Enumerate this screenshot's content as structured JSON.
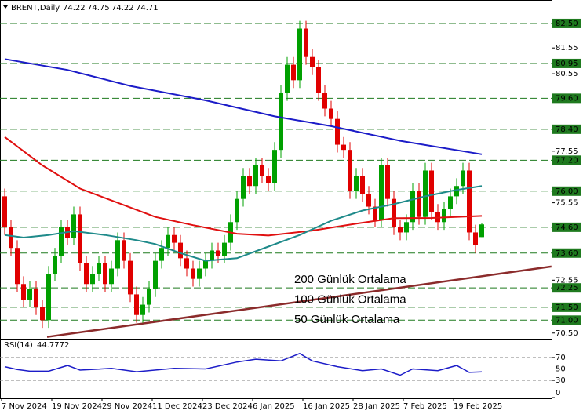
{
  "chart_data": [
    {
      "type": "candlestick",
      "title": "BRENT,Daily",
      "categories": [
        "7 Nov 2024",
        null,
        null,
        null,
        null,
        null,
        null,
        null,
        "19 Nov 2024",
        null,
        null,
        null,
        null,
        null,
        null,
        null,
        "29 Nov 2024",
        null,
        null,
        null,
        null,
        null,
        null,
        null,
        "11 Dec 2024",
        null,
        null,
        null,
        null,
        null,
        null,
        null,
        "23 Dec 2024",
        null,
        null,
        null,
        null,
        null,
        null,
        null,
        "6 Jan 2025",
        null,
        null,
        null,
        null,
        null,
        null,
        null,
        "16 Jan 2025",
        null,
        null,
        null,
        null,
        null,
        null,
        null,
        "28 Jan 2025",
        null,
        null,
        null,
        null,
        null,
        null,
        null,
        "7 Feb 2025",
        null,
        null,
        null,
        null,
        null,
        null,
        null,
        "19 Feb 2025",
        null,
        null,
        null,
        null
      ],
      "open": [
        75.8,
        74.6,
        73.8,
        72.4,
        71.8,
        72.2,
        71.5,
        71.0,
        72.8,
        73.5,
        74.6,
        74.2,
        75.1,
        73.2,
        72.4,
        72.8,
        73.2,
        72.4,
        73.0,
        74.1,
        73.3,
        72.0,
        71.2,
        71.6,
        72.2,
        73.3,
        73.8,
        74.3,
        74.0,
        73.4,
        73.0,
        72.6,
        73.0,
        73.3,
        73.7,
        73.5,
        74.0,
        74.8,
        75.7,
        76.6,
        76.2,
        77.0,
        76.6,
        76.3,
        77.6,
        79.8,
        80.9,
        80.3,
        82.3,
        81.2,
        80.8,
        79.8,
        79.2,
        78.8,
        77.8,
        77.6,
        76.0,
        76.6,
        75.9,
        75.4,
        74.9,
        77.0,
        75.7,
        74.6,
        74.4,
        74.8,
        76.0,
        75.0,
        76.8,
        75.2,
        74.8,
        75.3,
        75.8,
        76.2,
        76.8,
        74.4,
        74.22
      ],
      "high": [
        76.1,
        74.9,
        74.1,
        72.7,
        72.5,
        72.5,
        71.8,
        73.1,
        73.8,
        74.9,
        74.9,
        75.4,
        75.4,
        73.5,
        73.1,
        73.5,
        73.5,
        73.3,
        74.4,
        74.4,
        73.6,
        72.3,
        71.9,
        72.5,
        73.6,
        74.1,
        74.6,
        74.6,
        74.3,
        73.7,
        73.3,
        73.3,
        73.6,
        74.0,
        74.0,
        74.3,
        75.1,
        76.0,
        76.9,
        76.9,
        77.3,
        77.3,
        76.9,
        77.9,
        80.1,
        81.2,
        81.2,
        82.6,
        82.6,
        81.5,
        81.1,
        80.1,
        79.5,
        79.1,
        78.1,
        77.9,
        76.9,
        76.9,
        76.2,
        75.7,
        77.3,
        77.3,
        76.0,
        74.9,
        75.1,
        76.3,
        76.3,
        77.1,
        77.1,
        75.5,
        75.6,
        76.1,
        76.5,
        77.1,
        77.1,
        74.7,
        74.75
      ],
      "low": [
        74.3,
        73.5,
        72.1,
        71.5,
        71.5,
        71.2,
        70.7,
        70.7,
        72.5,
        73.2,
        73.9,
        73.9,
        72.9,
        72.1,
        72.1,
        72.5,
        72.1,
        72.1,
        72.7,
        73.0,
        71.7,
        70.9,
        70.9,
        71.3,
        71.9,
        73.0,
        73.5,
        73.7,
        73.1,
        72.7,
        72.3,
        72.3,
        72.7,
        73.0,
        73.2,
        73.2,
        73.7,
        74.5,
        75.4,
        75.9,
        75.9,
        76.3,
        76.0,
        76.0,
        77.3,
        79.5,
        80.0,
        80.0,
        80.9,
        80.5,
        79.5,
        78.9,
        78.5,
        77.5,
        77.3,
        75.7,
        75.7,
        75.6,
        75.1,
        74.6,
        74.6,
        75.4,
        74.3,
        74.1,
        74.1,
        74.5,
        74.7,
        74.7,
        74.9,
        74.5,
        74.5,
        75.0,
        75.5,
        75.9,
        74.1,
        73.6,
        74.22
      ],
      "close": [
        74.6,
        73.8,
        72.4,
        71.8,
        72.2,
        71.5,
        71.0,
        72.8,
        73.5,
        74.6,
        74.2,
        75.1,
        73.2,
        72.4,
        72.8,
        73.2,
        72.4,
        73.0,
        74.1,
        73.3,
        72.0,
        71.2,
        71.6,
        72.2,
        73.3,
        73.8,
        74.3,
        74.0,
        73.4,
        73.0,
        72.6,
        73.0,
        73.3,
        73.7,
        73.5,
        74.0,
        74.8,
        75.7,
        76.6,
        76.2,
        77.0,
        76.6,
        76.3,
        77.6,
        79.8,
        80.9,
        80.3,
        82.3,
        81.2,
        80.8,
        79.8,
        79.2,
        78.8,
        77.8,
        77.6,
        76.0,
        76.6,
        75.9,
        75.4,
        74.9,
        77.0,
        75.7,
        74.6,
        74.4,
        74.8,
        76.0,
        75.0,
        76.8,
        75.2,
        74.8,
        75.3,
        75.8,
        76.2,
        76.8,
        74.4,
        73.9,
        74.71
      ],
      "up_color": "#00a000",
      "down_color": "#e00000",
      "ylim": [
        70.28,
        83.41
      ],
      "yticks": [
        {
          "value": 81.55,
          "label": "81.55"
        },
        {
          "value": 80.55,
          "label": "80.55"
        },
        {
          "value": 77.55,
          "label": "77.55"
        },
        {
          "value": 75.55,
          "label": "75.55"
        },
        {
          "value": 72.55,
          "label": "72.55"
        },
        {
          "value": 70.5,
          "label": "70.50"
        }
      ],
      "levels": [
        {
          "value": 82.5,
          "label": "82.50"
        },
        {
          "value": 80.95,
          "label": "80.95"
        },
        {
          "value": 79.6,
          "label": "79.60"
        },
        {
          "value": 78.4,
          "label": "78.40"
        },
        {
          "value": 77.2,
          "label": "77.20"
        },
        {
          "value": 76.0,
          "label": "76.00"
        },
        {
          "value": 74.6,
          "label": "74.60"
        },
        {
          "value": 73.6,
          "label": "73.60"
        },
        {
          "value": 72.25,
          "label": "72.25"
        },
        {
          "value": 71.5,
          "label": "71.50"
        },
        {
          "value": 71.0,
          "label": "71.00"
        }
      ],
      "level_color": "#1f7a1f",
      "series": [
        {
          "name": "200 Günlük Ortalama",
          "color": "#1c1cc8",
          "x": [
            0,
            10,
            20,
            32,
            43,
            52,
            63,
            76
          ],
          "values": [
            81.12,
            80.7,
            80.08,
            79.52,
            78.9,
            78.52,
            77.95,
            77.43
          ]
        },
        {
          "name": "100 Günlük Ortalama",
          "color": "#e01010",
          "x": [
            0,
            6,
            12,
            18,
            24,
            30,
            37,
            42,
            49,
            56,
            62,
            68,
            76
          ],
          "values": [
            78.1,
            77.0,
            76.1,
            75.55,
            75.0,
            74.68,
            74.35,
            74.28,
            74.47,
            74.74,
            74.95,
            74.96,
            75.04
          ]
        },
        {
          "name": "50 Günlük Ortalama",
          "color": "#1e8a8a",
          "x": [
            0,
            3,
            7,
            11,
            16,
            21,
            24,
            28,
            32,
            37,
            42,
            47,
            52,
            57,
            62,
            67,
            72,
            76
          ],
          "values": [
            74.3,
            74.2,
            74.3,
            74.45,
            74.3,
            74.1,
            73.95,
            73.6,
            73.3,
            73.4,
            73.85,
            74.3,
            74.85,
            75.25,
            75.5,
            75.8,
            76.05,
            76.2
          ]
        }
      ],
      "trendline": {
        "color": "#8b2b2b",
        "x": [
          6.75,
          87.1
        ],
        "values": [
          70.35,
          73.08
        ]
      }
    },
    {
      "type": "line",
      "title": "RSI(14)",
      "series": [
        {
          "color": "#1c1cc8",
          "x": [
            0,
            2,
            4,
            7,
            10,
            12,
            17,
            21,
            27,
            32,
            37,
            40,
            44,
            47,
            49,
            53,
            57,
            60,
            63,
            65,
            69,
            72,
            74,
            76
          ],
          "values": [
            54,
            49,
            46,
            46,
            56,
            48,
            51,
            45,
            51,
            50,
            62,
            67,
            64,
            77,
            64,
            54,
            47,
            50,
            39,
            50,
            47,
            56,
            44,
            44.7772
          ]
        }
      ],
      "ylim": [
        0,
        100
      ],
      "yticks": [
        70,
        50,
        30,
        0
      ],
      "levels": [
        70,
        30
      ]
    }
  ]
}
